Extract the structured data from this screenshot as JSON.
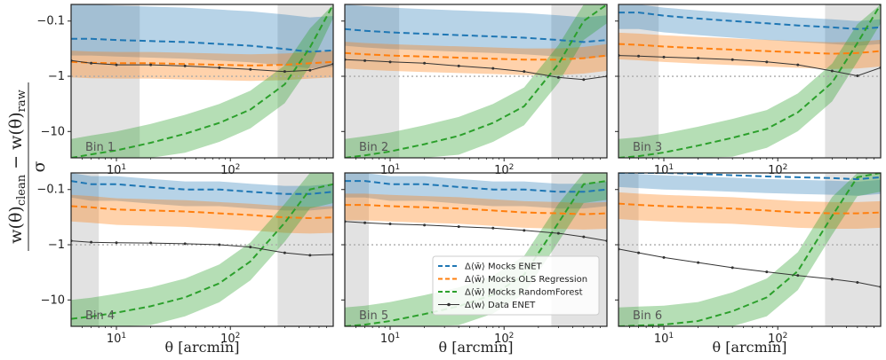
{
  "chart_data": {
    "type": "line",
    "xlabel": "θ [arcmin]",
    "ylabel": "w(θ)clean − w(θ)raw / σ",
    "ylabel_parts": {
      "num_left": "w(θ)",
      "num_sub1": "clean",
      "num_mid": " − w(θ)",
      "num_sub2": "raw",
      "den": "σ"
    },
    "xscale": "log",
    "yscale": "symlog (negative)",
    "xlim": [
      4,
      800
    ],
    "ylim": [
      -0.05,
      -30
    ],
    "x_ticks": [
      {
        "value": 10,
        "base": "10",
        "exp": "1"
      },
      {
        "value": 100,
        "base": "10",
        "exp": "2"
      }
    ],
    "y_ticks": [
      {
        "value": -0.1,
        "label": "−0.1"
      },
      {
        "value": -1,
        "label": "−1"
      },
      {
        "value": -10,
        "label": "−10"
      }
    ],
    "reference_line": -1,
    "colors": {
      "enet": "#1f77b4",
      "ols": "#ff7f0e",
      "rf": "#2ca02c",
      "data": "#333333",
      "mask": "#d3d3d3",
      "ref": "#aaaaaa"
    },
    "legend": {
      "placement": "lower-right of Bin 5",
      "entries": [
        {
          "label": "Δ⟨w̄⟩ Mocks ENET",
          "key": "enet"
        },
        {
          "label": "Δ⟨w̄⟩ Mocks OLS Regression",
          "key": "ols"
        },
        {
          "label": "Δ⟨w̄⟩ Mocks RandomForest",
          "key": "rf"
        },
        {
          "label": "Δ⟨w⟩ Data ENET",
          "key": "data"
        }
      ]
    },
    "panels": [
      {
        "label": "Bin 1",
        "mask_low": 16,
        "mask_high": 260,
        "x": [
          4,
          6,
          10,
          20,
          40,
          80,
          150,
          300,
          500,
          800
        ],
        "enet": [
          -0.21,
          -0.21,
          -0.22,
          -0.23,
          -0.24,
          -0.26,
          -0.28,
          -0.32,
          -0.36,
          -0.34
        ],
        "enet_band": [
          0.1,
          2.0
        ],
        "ols": [
          -0.55,
          -0.57,
          -0.58,
          -0.58,
          -0.6,
          -0.62,
          -0.64,
          -0.62,
          -0.58,
          -0.55
        ],
        "ols_band": [
          1.6,
          1.9
        ],
        "rf": [
          -30,
          -26,
          -22,
          -16,
          -11,
          -7.0,
          -4.0,
          -1.4,
          -0.3,
          -0.04
        ],
        "rf_band": 2.2,
        "data": [
          -0.52,
          -0.58,
          -0.62,
          -0.62,
          -0.65,
          -0.7,
          -0.75,
          -0.82,
          -0.78,
          -0.6
        ]
      },
      {
        "label": "Bin 2",
        "mask_low": 12,
        "mask_high": 260,
        "x": [
          4,
          6,
          10,
          20,
          40,
          80,
          150,
          300,
          500,
          800
        ],
        "enet": [
          -0.14,
          -0.15,
          -0.16,
          -0.17,
          -0.18,
          -0.19,
          -0.2,
          -0.22,
          -0.24,
          -0.22
        ],
        "enet_band": [
          0.1,
          2.0
        ],
        "ols": [
          -0.38,
          -0.4,
          -0.42,
          -0.44,
          -0.46,
          -0.48,
          -0.5,
          -0.5,
          -0.47,
          -0.42
        ],
        "ols_band": [
          1.6,
          1.9
        ],
        "rf": [
          -30,
          -27,
          -23,
          -17,
          -12,
          -7.0,
          -3.5,
          -0.6,
          -0.1,
          -0.05
        ],
        "rf_band": 2.2,
        "data": [
          -0.5,
          -0.52,
          -0.55,
          -0.58,
          -0.65,
          -0.72,
          -0.82,
          -1.05,
          -1.15,
          -1.0
        ]
      },
      {
        "label": "Bin 3",
        "mask_low": 9,
        "mask_high": 260,
        "x": [
          4,
          6,
          10,
          20,
          40,
          80,
          150,
          300,
          500,
          800
        ],
        "enet": [
          -0.07,
          -0.07,
          -0.08,
          -0.09,
          -0.1,
          -0.11,
          -0.12,
          -0.13,
          -0.14,
          -0.13
        ],
        "enet_band": [
          0.1,
          2.0
        ],
        "ols": [
          -0.26,
          -0.27,
          -0.29,
          -0.31,
          -0.33,
          -0.35,
          -0.37,
          -0.39,
          -0.38,
          -0.35
        ],
        "ols_band": [
          1.6,
          1.9
        ],
        "rf": [
          -30,
          -28,
          -24,
          -18,
          -13,
          -9.0,
          -4.5,
          -1.3,
          -0.25,
          -0.05
        ],
        "rf_band": 2.2,
        "data": [
          -0.42,
          -0.43,
          -0.45,
          -0.47,
          -0.5,
          -0.55,
          -0.62,
          -0.8,
          -0.98,
          -0.7
        ]
      },
      {
        "label": "Bin 4",
        "mask_low": 7,
        "mask_high": 260,
        "x": [
          4,
          6,
          10,
          20,
          40,
          80,
          150,
          300,
          500,
          800
        ],
        "enet": [
          -0.07,
          -0.08,
          -0.08,
          -0.09,
          -0.1,
          -0.1,
          -0.11,
          -0.12,
          -0.12,
          -0.11
        ],
        "enet_band": [
          0.1,
          2.0
        ],
        "ols": [
          -0.2,
          -0.21,
          -0.23,
          -0.24,
          -0.25,
          -0.27,
          -0.29,
          -0.32,
          -0.33,
          -0.32
        ],
        "ols_band": [
          1.6,
          1.9
        ],
        "rf": [
          -22,
          -20,
          -17,
          -13,
          -9.0,
          -5.0,
          -2.0,
          -0.4,
          -0.1,
          -0.08
        ],
        "rf_band": 2.2,
        "data": [
          -0.85,
          -0.9,
          -0.92,
          -0.93,
          -0.96,
          -1.0,
          -1.1,
          -1.4,
          -1.55,
          -1.5
        ]
      },
      {
        "label": "Bin 5",
        "mask_low": 6.5,
        "mask_high": 260,
        "x": [
          4,
          6,
          10,
          20,
          40,
          80,
          150,
          300,
          500,
          800
        ],
        "enet": [
          -0.07,
          -0.07,
          -0.08,
          -0.08,
          -0.09,
          -0.1,
          -0.1,
          -0.11,
          -0.11,
          -0.1
        ],
        "enet_band": [
          0.1,
          2.0
        ],
        "ols": [
          -0.19,
          -0.19,
          -0.2,
          -0.21,
          -0.22,
          -0.24,
          -0.26,
          -0.27,
          -0.28,
          -0.27
        ],
        "ols_band": [
          1.6,
          1.9
        ],
        "rf": [
          -30,
          -28,
          -24,
          -18,
          -13,
          -8.0,
          -3.5,
          -0.4,
          -0.08,
          -0.07
        ],
        "rf_band": 2.2,
        "data": [
          -0.38,
          -0.4,
          -0.42,
          -0.44,
          -0.47,
          -0.5,
          -0.55,
          -0.62,
          -0.72,
          -0.85
        ]
      },
      {
        "label": "Bin 6",
        "mask_low": 6,
        "mask_high": 260,
        "x": [
          4,
          6,
          10,
          20,
          40,
          80,
          150,
          300,
          500,
          800
        ],
        "enet": [
          -0.045,
          -0.047,
          -0.05,
          -0.052,
          -0.055,
          -0.058,
          -0.06,
          -0.062,
          -0.065,
          -0.06
        ],
        "enet_band": [
          0.1,
          2.0
        ],
        "ols": [
          -0.18,
          -0.19,
          -0.2,
          -0.21,
          -0.22,
          -0.24,
          -0.26,
          -0.27,
          -0.27,
          -0.26
        ],
        "ols_band": [
          1.6,
          1.9
        ],
        "rf": [
          -30,
          -29,
          -28,
          -24,
          -16,
          -9.0,
          -3.0,
          -0.3,
          -0.06,
          -0.05
        ],
        "rf_band": 2.2,
        "data": [
          -1.2,
          -1.4,
          -1.7,
          -2.1,
          -2.6,
          -3.1,
          -3.6,
          -4.2,
          -4.8,
          -5.8
        ]
      }
    ]
  }
}
